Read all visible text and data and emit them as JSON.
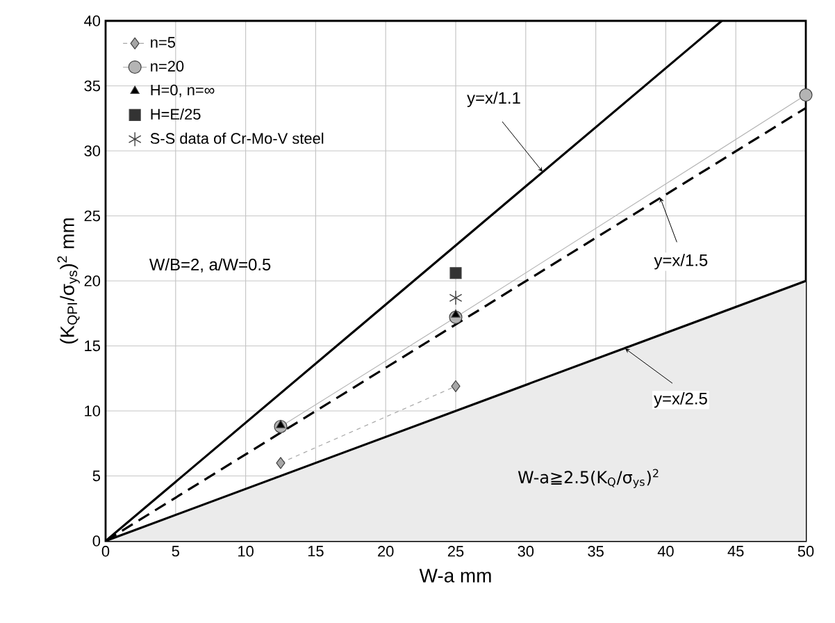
{
  "chart_data": {
    "type": "line",
    "xlabel": "W-a        mm",
    "ylabel": "(K$_{QPI}$/σ$_{ys}$)$^{2}$        mm",
    "xlim": [
      0,
      50
    ],
    "ylim": [
      0,
      40
    ],
    "xticks": [
      0,
      5,
      10,
      15,
      20,
      25,
      30,
      35,
      40,
      45,
      50
    ],
    "yticks": [
      0,
      5,
      10,
      15,
      20,
      25,
      30,
      35,
      40
    ],
    "grid": true,
    "legend": "top left",
    "series": [
      {
        "color": "#000000",
        "marker": "none",
        "line_style": "solid",
        "x": [
          0,
          44
        ],
        "values": [
          0,
          40
        ]
      },
      {
        "color": "#000000",
        "marker": "none",
        "line_style": "dashed",
        "x": [
          0,
          50
        ],
        "values": [
          0,
          33.3
        ]
      },
      {
        "type": "area",
        "color": "#000000",
        "marker": "none",
        "line_style": "solid",
        "x": [
          0,
          50
        ],
        "values": [
          0,
          20
        ]
      },
      {
        "name": "n=5",
        "color": "#a6a6a6",
        "marker": "diamond",
        "line_style": "dashed",
        "x": [
          12.5,
          25
        ],
        "values": [
          6.0,
          11.9
        ]
      },
      {
        "name": "n=20",
        "color": "#b4b4b4",
        "marker": "circle",
        "line_style": "solid",
        "x": [
          12.5,
          25,
          50
        ],
        "values": [
          8.8,
          17.2,
          34.3
        ]
      },
      {
        "type": "scatter",
        "name": "H=0, n=∞",
        "color": "#000000",
        "marker": "triangle",
        "x": [
          12.5,
          25
        ],
        "values": [
          8.9,
          17.4
        ]
      },
      {
        "type": "scatter",
        "name": "H=E/25",
        "color": "#333333",
        "marker": "square",
        "x": [
          25
        ],
        "values": [
          20.6
        ]
      },
      {
        "type": "scatter",
        "name": "S-S data of Cr-Mo-V steel",
        "color": "#404040",
        "marker": "cross",
        "x": [
          25
        ],
        "values": [
          18.7
        ]
      }
    ],
    "annotations": [
      {
        "text": "y=x/1.1",
        "x": 31.2,
        "y": 28.4
      },
      {
        "text": "y=x/1.5",
        "x": 39.6,
        "y": 26.4
      },
      {
        "text": "y=x/2.5",
        "x": 37.1,
        "y": 14.8
      },
      "W/B=2, a/W=0.5",
      "W-a≧2.5(K$_{Q}$/σ$_{ys}$)$^{2}$"
    ]
  }
}
